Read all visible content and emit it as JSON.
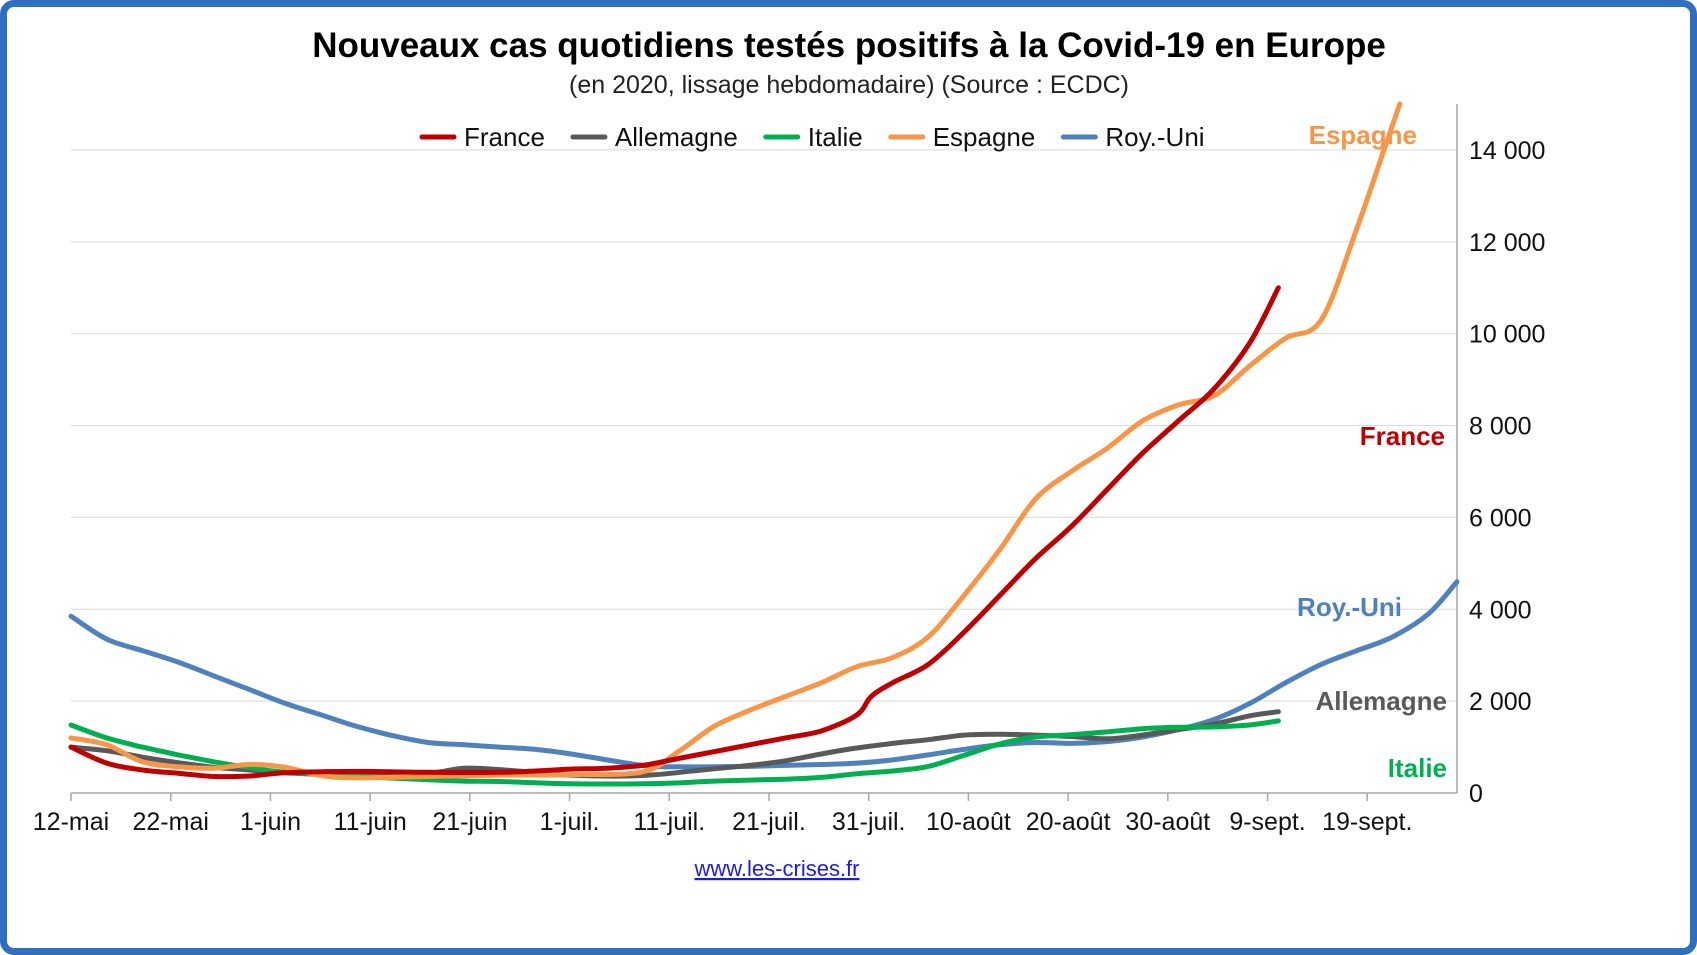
{
  "chart_data": {
    "type": "line",
    "title": "Nouveaux cas quotidiens testés positifs à la Covid-19 en Europe",
    "subtitle": "(en 2020, lissage hebdomadaire) (Source : ECDC)",
    "source": "www.les-crises.fr",
    "x_tick_labels": [
      "12-mai",
      "22-mai",
      "1-juin",
      "11-juin",
      "21-juin",
      "1-juil.",
      "11-juil.",
      "21-juil.",
      "31-juil.",
      "10-août",
      "20-août",
      "30-août",
      "9-sept.",
      "19-sept."
    ],
    "y_ticks": [
      0,
      2000,
      4000,
      6000,
      8000,
      10000,
      12000,
      14000
    ],
    "y_tick_labels": [
      "0",
      "2 000",
      "4 000",
      "6 000",
      "8 000",
      "10 000",
      "12 000",
      "14 000"
    ],
    "ylim": [
      0,
      15000
    ],
    "x_day_range": [
      0,
      139
    ],
    "grid": true,
    "y_axis_side": "right",
    "legend_position": "top",
    "series": [
      {
        "name": "France",
        "color": "#c00000",
        "end_label": "France",
        "end_label_color": "#c00000",
        "points": [
          [
            0,
            1000
          ],
          [
            5,
            650
          ],
          [
            10,
            500
          ],
          [
            15,
            430
          ],
          [
            20,
            360
          ],
          [
            25,
            370
          ],
          [
            30,
            440
          ],
          [
            40,
            470
          ],
          [
            50,
            450
          ],
          [
            60,
            450
          ],
          [
            65,
            480
          ],
          [
            70,
            520
          ],
          [
            75,
            540
          ],
          [
            80,
            600
          ],
          [
            85,
            750
          ],
          [
            90,
            900
          ],
          [
            95,
            1050
          ],
          [
            100,
            1200
          ],
          [
            105,
            1350
          ],
          [
            110,
            1700
          ],
          [
            112,
            2100
          ],
          [
            115,
            2400
          ],
          [
            120,
            2800
          ],
          [
            125,
            3500
          ],
          [
            130,
            4300
          ],
          [
            135,
            5100
          ],
          [
            140,
            5800
          ],
          [
            145,
            6600
          ],
          [
            150,
            7400
          ],
          [
            155,
            8100
          ],
          [
            160,
            8800
          ],
          [
            165,
            9800
          ],
          [
            169,
            11000
          ]
        ]
      },
      {
        "name": "Allemagne",
        "color": "#595959",
        "end_label": "Allemagne",
        "end_label_color": "#595959",
        "points": [
          [
            0,
            1000
          ],
          [
            5,
            920
          ],
          [
            10,
            780
          ],
          [
            15,
            660
          ],
          [
            20,
            560
          ],
          [
            25,
            500
          ],
          [
            30,
            440
          ],
          [
            40,
            390
          ],
          [
            50,
            430
          ],
          [
            55,
            540
          ],
          [
            60,
            510
          ],
          [
            70,
            390
          ],
          [
            80,
            380
          ],
          [
            90,
            530
          ],
          [
            95,
            600
          ],
          [
            100,
            700
          ],
          [
            105,
            850
          ],
          [
            110,
            980
          ],
          [
            115,
            1080
          ],
          [
            120,
            1160
          ],
          [
            125,
            1260
          ],
          [
            130,
            1280
          ],
          [
            135,
            1260
          ],
          [
            140,
            1230
          ],
          [
            145,
            1180
          ],
          [
            150,
            1260
          ],
          [
            155,
            1380
          ],
          [
            160,
            1500
          ],
          [
            165,
            1680
          ],
          [
            169,
            1770
          ]
        ]
      },
      {
        "name": "Italie",
        "color": "#00b050",
        "end_label": "Italie",
        "end_label_color": "#00b050",
        "points": [
          [
            0,
            1480
          ],
          [
            5,
            1200
          ],
          [
            10,
            1000
          ],
          [
            15,
            830
          ],
          [
            20,
            680
          ],
          [
            25,
            550
          ],
          [
            30,
            450
          ],
          [
            40,
            360
          ],
          [
            50,
            290
          ],
          [
            55,
            260
          ],
          [
            60,
            250
          ],
          [
            70,
            200
          ],
          [
            80,
            200
          ],
          [
            85,
            220
          ],
          [
            90,
            260
          ],
          [
            100,
            300
          ],
          [
            105,
            340
          ],
          [
            110,
            420
          ],
          [
            115,
            480
          ],
          [
            120,
            580
          ],
          [
            125,
            820
          ],
          [
            130,
            1070
          ],
          [
            135,
            1220
          ],
          [
            140,
            1270
          ],
          [
            145,
            1330
          ],
          [
            150,
            1400
          ],
          [
            155,
            1430
          ],
          [
            160,
            1440
          ],
          [
            165,
            1480
          ],
          [
            169,
            1570
          ]
        ]
      },
      {
        "name": "Espagne",
        "color": "#f79646",
        "end_label": "Espagne",
        "end_label_color": "#f79646",
        "points": [
          [
            0,
            1200
          ],
          [
            5,
            1050
          ],
          [
            10,
            680
          ],
          [
            15,
            570
          ],
          [
            20,
            540
          ],
          [
            25,
            620
          ],
          [
            30,
            560
          ],
          [
            35,
            380
          ],
          [
            40,
            330
          ],
          [
            50,
            360
          ],
          [
            60,
            390
          ],
          [
            70,
            400
          ],
          [
            80,
            460
          ],
          [
            85,
            900
          ],
          [
            90,
            1450
          ],
          [
            95,
            1800
          ],
          [
            100,
            2100
          ],
          [
            105,
            2400
          ],
          [
            110,
            2750
          ],
          [
            115,
            2950
          ],
          [
            120,
            3400
          ],
          [
            125,
            4300
          ],
          [
            130,
            5300
          ],
          [
            135,
            6400
          ],
          [
            140,
            7000
          ],
          [
            145,
            7500
          ],
          [
            150,
            8100
          ],
          [
            155,
            8450
          ],
          [
            160,
            8650
          ],
          [
            165,
            9300
          ],
          [
            170,
            9900
          ],
          [
            175,
            10300
          ],
          [
            180,
            12300
          ],
          [
            184,
            14100
          ],
          [
            186,
            15000
          ]
        ]
      },
      {
        "name": "Roy.-Uni",
        "color": "#4f81bd",
        "end_label": "Roy.-Uni",
        "end_label_color": "#4f81bd",
        "points": [
          [
            0,
            3850
          ],
          [
            5,
            3350
          ],
          [
            10,
            3100
          ],
          [
            15,
            2850
          ],
          [
            20,
            2550
          ],
          [
            25,
            2250
          ],
          [
            30,
            1950
          ],
          [
            35,
            1700
          ],
          [
            40,
            1450
          ],
          [
            45,
            1250
          ],
          [
            50,
            1100
          ],
          [
            55,
            1050
          ],
          [
            60,
            1000
          ],
          [
            65,
            950
          ],
          [
            70,
            850
          ],
          [
            80,
            600
          ],
          [
            85,
            570
          ],
          [
            90,
            570
          ],
          [
            95,
            580
          ],
          [
            100,
            600
          ],
          [
            105,
            620
          ],
          [
            110,
            650
          ],
          [
            115,
            720
          ],
          [
            120,
            830
          ],
          [
            125,
            950
          ],
          [
            130,
            1050
          ],
          [
            135,
            1100
          ],
          [
            140,
            1080
          ],
          [
            145,
            1120
          ],
          [
            150,
            1220
          ],
          [
            155,
            1380
          ],
          [
            160,
            1600
          ],
          [
            165,
            1950
          ],
          [
            170,
            2400
          ],
          [
            175,
            2800
          ],
          [
            180,
            3100
          ],
          [
            185,
            3400
          ],
          [
            190,
            3900
          ],
          [
            194,
            4600
          ]
        ]
      }
    ]
  }
}
